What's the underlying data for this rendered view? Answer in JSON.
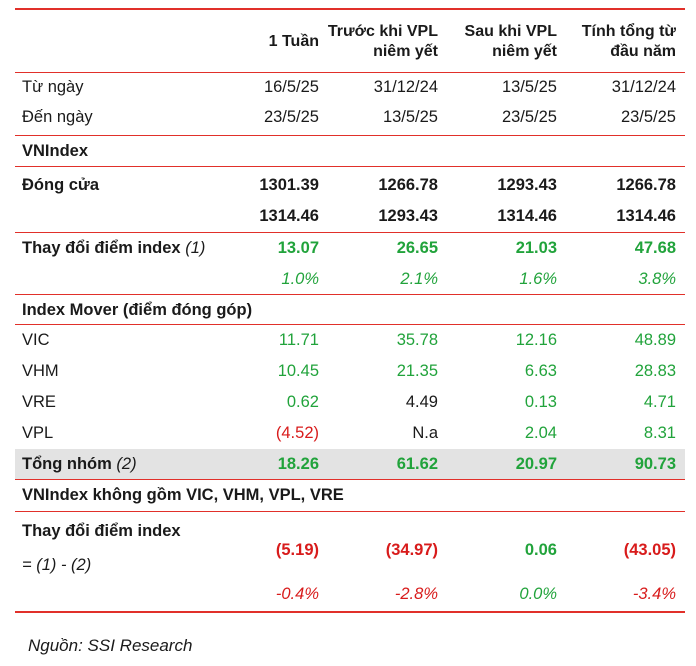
{
  "columns": [
    "1 Tuần",
    "Trước khi VPL niêm yết",
    "Sau khi VPL niêm yết",
    "Tính tổng từ đầu năm"
  ],
  "column_lines": [
    [
      "1 Tuần"
    ],
    [
      "Trước khi VPL",
      "niêm yết"
    ],
    [
      "Sau khi VPL",
      "niêm yết"
    ],
    [
      "Tính tổng từ",
      "đầu năm"
    ]
  ],
  "rows": {
    "tu_ngay": {
      "label": "Từ ngày",
      "values": [
        "16/5/25",
        "31/12/24",
        "13/5/25",
        "31/12/24"
      ]
    },
    "den_ngay": {
      "label": "Đến ngày",
      "values": [
        "23/5/25",
        "13/5/25",
        "23/5/25",
        "23/5/25"
      ]
    },
    "vnindex": {
      "label": "VNIndex"
    },
    "dong_cua": {
      "label": "Đóng cửa",
      "values": [
        "1301.39",
        "1266.78",
        "1293.43",
        "1266.78"
      ]
    },
    "dong_cua_2": {
      "values": [
        "1314.46",
        "1293.43",
        "1314.46",
        "1314.46"
      ]
    },
    "thay_doi": {
      "label": "Thay đổi điểm index",
      "label_suffix": "(1)",
      "values": [
        "13.07",
        "26.65",
        "21.03",
        "47.68"
      ]
    },
    "thay_doi_pct": {
      "values": [
        "1.0%",
        "2.1%",
        "1.6%",
        "3.8%"
      ]
    },
    "index_mover": {
      "label": "Index Mover (điểm đóng góp)"
    },
    "vic": {
      "label": "VIC",
      "values": [
        "11.71",
        "35.78",
        "12.16",
        "48.89"
      ]
    },
    "vhm": {
      "label": "VHM",
      "values": [
        "10.45",
        "21.35",
        "6.63",
        "28.83"
      ]
    },
    "vre": {
      "label": "VRE",
      "values": [
        "0.62",
        "4.49",
        "0.13",
        "4.71"
      ]
    },
    "vpl": {
      "label": "VPL",
      "values": [
        "(4.52)",
        "N.a",
        "2.04",
        "8.31"
      ]
    },
    "tong_nhom": {
      "label": "Tổng nhóm",
      "label_suffix": "(2)",
      "values": [
        "18.26",
        "61.62",
        "20.97",
        "90.73"
      ]
    },
    "khong_gom": {
      "label": "VNIndex không gồm VIC, VHM, VPL, VRE"
    },
    "thay_doi_ex": {
      "label": "Thay đổi điểm index",
      "label2": "= (1) - (2)",
      "values": [
        "(5.19)",
        "(34.97)",
        "0.06",
        "(43.05)"
      ]
    },
    "thay_doi_ex_pct": {
      "values": [
        "-0.4%",
        "-2.8%",
        "0.0%",
        "-3.4%"
      ]
    }
  },
  "source": "Nguồn: SSI Research",
  "colors": {
    "rule": "#e1302a",
    "positive": "#21a33b",
    "negative": "#d81b1b",
    "highlight": "#e3e3e3"
  }
}
